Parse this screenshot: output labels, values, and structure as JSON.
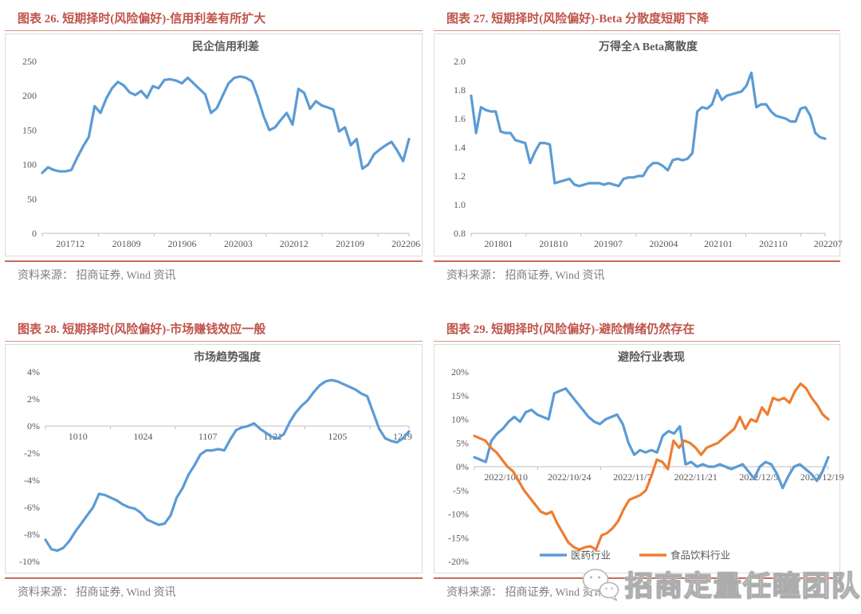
{
  "colors": {
    "accent_title": "#C0544B",
    "title_rule": "#D69286",
    "bottom_rule": "#C96A5C",
    "line_blue": "#5B9BD5",
    "line_orange": "#ED7D31",
    "axis_gray": "#BFBFBF",
    "label_gray": "#595959",
    "source_gray": "#7F7F7F"
  },
  "watermark": {
    "icon": "wechat-icon",
    "text": "招商定量任瞳团队"
  },
  "chart_data": [
    {
      "type": "line",
      "figure_label": "图表 26. 短期择时(风险偏好)-信用利差有所扩大",
      "title": "民企信用利差",
      "source": "资料来源： 招商证券, Wind 资讯",
      "ylim": [
        0,
        250
      ],
      "ytick_labels": [
        "250",
        "200",
        "150",
        "100",
        "50",
        "0"
      ],
      "ytick_values": [
        250,
        200,
        150,
        100,
        50,
        0
      ],
      "xtick_labels": [
        "201712",
        "201809",
        "201906",
        "202003",
        "202012",
        "202109",
        "202206"
      ],
      "xtick_f": [
        0,
        0.153,
        0.305,
        0.458,
        0.61,
        0.763,
        0.915
      ],
      "axis_at": 0,
      "legend_position": null,
      "series": [
        {
          "name": "民企信用利差",
          "color": "#5B9BD5",
          "values": [
            88,
            96,
            92,
            90,
            90,
            92,
            110,
            126,
            140,
            185,
            175,
            196,
            211,
            220,
            215,
            205,
            201,
            207,
            197,
            214,
            211,
            223,
            224,
            222,
            218,
            226,
            218,
            210,
            202,
            175,
            182,
            200,
            218,
            226,
            228,
            226,
            221,
            198,
            171,
            150,
            154,
            165,
            175,
            158,
            210,
            204,
            181,
            192,
            186,
            183,
            180,
            148,
            154,
            128,
            137,
            94,
            100,
            115,
            122,
            128,
            133,
            120,
            105,
            137
          ]
        }
      ]
    },
    {
      "type": "line",
      "figure_label": "图表 27. 短期择时(风险偏好)-Beta 分散度短期下降",
      "title": "万得全A Beta离散度",
      "source": "资料来源： 招商证券, Wind 资讯",
      "ylim": [
        0.8,
        2.0
      ],
      "ytick_labels": [
        "2.0",
        "1.8",
        "1.6",
        "1.4",
        "1.2",
        "1.0",
        "0.8"
      ],
      "ytick_values": [
        2.0,
        1.8,
        1.6,
        1.4,
        1.2,
        1.0,
        0.8
      ],
      "xtick_labels": [
        "201801",
        "201810",
        "201907",
        "202004",
        "202101",
        "202110",
        "202207"
      ],
      "xtick_f": [
        0,
        0.155,
        0.31,
        0.466,
        0.621,
        0.776,
        0.931
      ],
      "axis_at": 0.8,
      "legend_position": null,
      "series": [
        {
          "name": "万得全A Beta离散度",
          "color": "#5B9BD5",
          "values": [
            1.76,
            1.5,
            1.68,
            1.66,
            1.65,
            1.65,
            1.51,
            1.5,
            1.5,
            1.45,
            1.44,
            1.43,
            1.29,
            1.37,
            1.43,
            1.43,
            1.42,
            1.15,
            1.16,
            1.17,
            1.18,
            1.14,
            1.13,
            1.14,
            1.15,
            1.15,
            1.15,
            1.14,
            1.15,
            1.14,
            1.13,
            1.18,
            1.19,
            1.19,
            1.2,
            1.2,
            1.26,
            1.29,
            1.29,
            1.27,
            1.24,
            1.31,
            1.32,
            1.31,
            1.32,
            1.36,
            1.65,
            1.68,
            1.67,
            1.7,
            1.8,
            1.73,
            1.76,
            1.77,
            1.78,
            1.79,
            1.83,
            1.92,
            1.68,
            1.7,
            1.7,
            1.65,
            1.62,
            1.61,
            1.6,
            1.58,
            1.58,
            1.67,
            1.68,
            1.62,
            1.5,
            1.47,
            1.46
          ]
        }
      ]
    },
    {
      "type": "line",
      "figure_label": "图表 28. 短期择时(风险偏好)-市场赚钱效应一般",
      "title": "市场趋势强度",
      "source": "资料来源： 招商证券, Wind 资讯",
      "ylim": [
        -10,
        4
      ],
      "ytick_labels": [
        "4%",
        "2%",
        "0%",
        "-2%",
        "-4%",
        "-6%",
        "-8%",
        "-10%"
      ],
      "ytick_values": [
        4,
        2,
        0,
        -2,
        -4,
        -6,
        -8,
        -10
      ],
      "xtick_labels": [
        "1010",
        "1024",
        "1107",
        "1121",
        "1205",
        "1219"
      ],
      "xtick_f": [
        0,
        0.179,
        0.357,
        0.536,
        0.714,
        0.893
      ],
      "axis_at": 0,
      "legend_position": null,
      "series": [
        {
          "name": "市场趋势强度",
          "color": "#5B9BD5",
          "values": [
            -8.4,
            -9.1,
            -9.2,
            -9.0,
            -8.5,
            -7.8,
            -7.2,
            -6.6,
            -6.0,
            -5.0,
            -5.1,
            -5.3,
            -5.5,
            -5.8,
            -6.0,
            -6.1,
            -6.4,
            -6.9,
            -7.1,
            -7.3,
            -7.2,
            -6.6,
            -5.3,
            -4.6,
            -3.6,
            -2.9,
            -2.1,
            -1.8,
            -1.8,
            -1.7,
            -1.8,
            -1.0,
            -0.3,
            -0.1,
            0.0,
            0.2,
            -0.2,
            -0.5,
            -0.8,
            -0.9,
            -0.6,
            0.3,
            1.0,
            1.5,
            1.9,
            2.5,
            3.0,
            3.3,
            3.4,
            3.3,
            3.1,
            2.9,
            2.7,
            2.4,
            2.2,
            1.0,
            -0.2,
            -0.9,
            -1.1,
            -1.2,
            -0.9,
            -0.4
          ]
        }
      ]
    },
    {
      "type": "line",
      "figure_label": "图表 29. 短期择时(风险偏好)-避险情绪仍然存在",
      "title": "避险行业表现",
      "source": "资料来源： 招商证券, Wind 资讯",
      "ylim": [
        -20,
        20
      ],
      "ytick_labels": [
        "20%",
        "15%",
        "10%",
        "5%",
        "0%",
        "-5%",
        "-10%",
        "-15%",
        "-20%"
      ],
      "ytick_values": [
        20,
        15,
        10,
        5,
        0,
        -5,
        -10,
        -15,
        -20
      ],
      "xtick_labels": [
        "2022/10/10",
        "2022/10/24",
        "2022/11/7",
        "2022/11/21",
        "2022/12/5",
        "2022/12/19"
      ],
      "xtick_f": [
        0,
        0.179,
        0.357,
        0.536,
        0.714,
        0.893
      ],
      "axis_at": 0,
      "legend_position": "bottom",
      "series": [
        {
          "name": "医药行业",
          "color": "#5B9BD5",
          "values": [
            2,
            1.5,
            1,
            5.5,
            7,
            8,
            9.5,
            10.5,
            9.5,
            11.5,
            12,
            11,
            10.5,
            10,
            15.5,
            16,
            16.5,
            15,
            13.5,
            12,
            10.5,
            9.5,
            9,
            10,
            10.5,
            11,
            9,
            5,
            2.5,
            3.5,
            3,
            3.5,
            3,
            6.5,
            7.5,
            7,
            8.5,
            0.5,
            1,
            0,
            0.5,
            0,
            0,
            0.5,
            0,
            -0.5,
            0,
            0.5,
            -1,
            -2.5,
            0,
            1,
            0.5,
            -1.5,
            -4.5,
            -2,
            0,
            0.5,
            -0.5,
            -1.5,
            -3,
            -1,
            2
          ]
        },
        {
          "name": "食品饮料行业",
          "color": "#ED7D31",
          "values": [
            6.5,
            6,
            5.5,
            4,
            3,
            1.5,
            0,
            -1,
            -3,
            -5,
            -6.5,
            -8,
            -9.5,
            -10,
            -9.5,
            -12,
            -14,
            -16,
            -17,
            -17.5,
            -17,
            -16.8,
            -17.5,
            -14.5,
            -14,
            -13,
            -11.5,
            -9,
            -7,
            -6.5,
            -6,
            -5,
            -2,
            1.5,
            1,
            -0.5,
            5.5,
            4,
            5.5,
            5,
            4,
            2.5,
            4,
            4.5,
            5,
            6,
            7,
            8,
            10.5,
            8,
            10,
            9.5,
            12.5,
            11,
            14.5,
            14,
            14.5,
            13.5,
            16,
            17.5,
            16.5,
            14.5,
            13,
            11,
            10
          ]
        }
      ]
    }
  ]
}
